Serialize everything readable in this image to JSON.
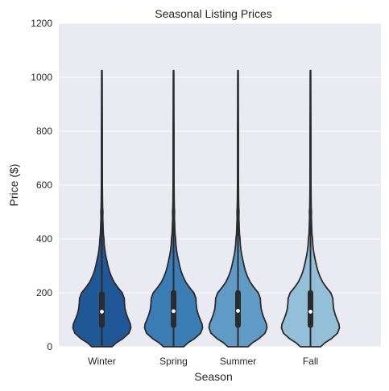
{
  "chart_data": {
    "type": "violin",
    "title": "Seasonal Listing Prices",
    "xlabel": "Season",
    "ylabel": "Price ($)",
    "ylim": [
      0,
      1200
    ],
    "yticks": [
      0,
      200,
      400,
      600,
      800,
      1000,
      1200
    ],
    "grid": true,
    "categories": [
      "Winter",
      "Spring",
      "Summer",
      "Fall"
    ],
    "colors": [
      "#1f5797",
      "#3a7cb4",
      "#5f9bc5",
      "#93bfd9"
    ],
    "background": "#eaeaf2",
    "series": [
      {
        "name": "Winter",
        "min": 0,
        "q1": 80,
        "median": 130,
        "q3": 195,
        "max": 1025
      },
      {
        "name": "Spring",
        "min": 0,
        "q1": 80,
        "median": 132,
        "q3": 200,
        "max": 1025
      },
      {
        "name": "Summer",
        "min": 0,
        "q1": 80,
        "median": 133,
        "q3": 200,
        "max": 1025
      },
      {
        "name": "Fall",
        "min": 0,
        "q1": 80,
        "median": 130,
        "q3": 200,
        "max": 1025
      }
    ],
    "density_profile": [
      [
        0,
        0.35
      ],
      [
        15,
        0.5
      ],
      [
        30,
        0.72
      ],
      [
        50,
        0.93
      ],
      [
        70,
        1.0
      ],
      [
        85,
        0.98
      ],
      [
        100,
        0.92
      ],
      [
        120,
        0.85
      ],
      [
        140,
        0.8
      ],
      [
        160,
        0.78
      ],
      [
        180,
        0.77
      ],
      [
        200,
        0.7
      ],
      [
        220,
        0.55
      ],
      [
        240,
        0.42
      ],
      [
        260,
        0.33
      ],
      [
        280,
        0.26
      ],
      [
        300,
        0.21
      ],
      [
        320,
        0.17
      ],
      [
        340,
        0.13
      ],
      [
        360,
        0.1
      ],
      [
        380,
        0.08
      ],
      [
        400,
        0.07
      ],
      [
        420,
        0.05
      ],
      [
        450,
        0.04
      ],
      [
        480,
        0.03
      ],
      [
        500,
        0.035
      ],
      [
        520,
        0.025
      ],
      [
        560,
        0.02
      ],
      [
        600,
        0.017
      ],
      [
        700,
        0.015
      ],
      [
        800,
        0.015
      ],
      [
        900,
        0.012
      ],
      [
        1000,
        0.01
      ],
      [
        1025,
        0.008
      ]
    ]
  }
}
